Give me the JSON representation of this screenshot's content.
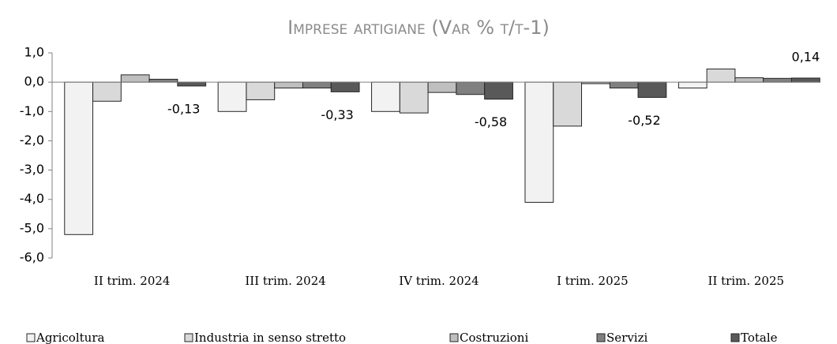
{
  "chart_data": {
    "type": "bar",
    "title": "Imprese artigiane (Var % t/t-1)",
    "categories": [
      "II trim. 2024",
      "III trim. 2024",
      "IV trim. 2024",
      "I trim. 2025",
      "II trim. 2025"
    ],
    "series": [
      {
        "name": "Agricoltura",
        "color": "#f2f2f2",
        "values": [
          -5.2,
          -1.0,
          -1.0,
          -4.1,
          -0.2
        ]
      },
      {
        "name": "Industria in senso stretto",
        "color": "#d9d9d9",
        "values": [
          -0.65,
          -0.6,
          -1.05,
          -1.5,
          0.45
        ]
      },
      {
        "name": "Costruzioni",
        "color": "#bfbfbf",
        "values": [
          0.25,
          -0.2,
          -0.35,
          -0.05,
          0.15
        ]
      },
      {
        "name": "Servizi",
        "color": "#808080",
        "values": [
          0.1,
          -0.2,
          -0.42,
          -0.2,
          0.13
        ]
      },
      {
        "name": "Totale",
        "color": "#595959",
        "values": [
          -0.13,
          -0.33,
          -0.58,
          -0.52,
          0.14
        ],
        "value_labels": [
          "-0,13",
          "-0,33",
          "-0,58",
          "-0,52",
          "0,14"
        ]
      }
    ],
    "ylim": [
      -6,
      1
    ],
    "yticks": [
      {
        "value": 1,
        "label": "1,0"
      },
      {
        "value": 0,
        "label": "0,0"
      },
      {
        "value": -1,
        "label": "-1,0"
      },
      {
        "value": -2,
        "label": "-2,0"
      },
      {
        "value": -3,
        "label": "-3,0"
      },
      {
        "value": -4,
        "label": "-4,0"
      },
      {
        "value": -5,
        "label": "-5,0"
      },
      {
        "value": -6,
        "label": "-6,0"
      }
    ]
  }
}
